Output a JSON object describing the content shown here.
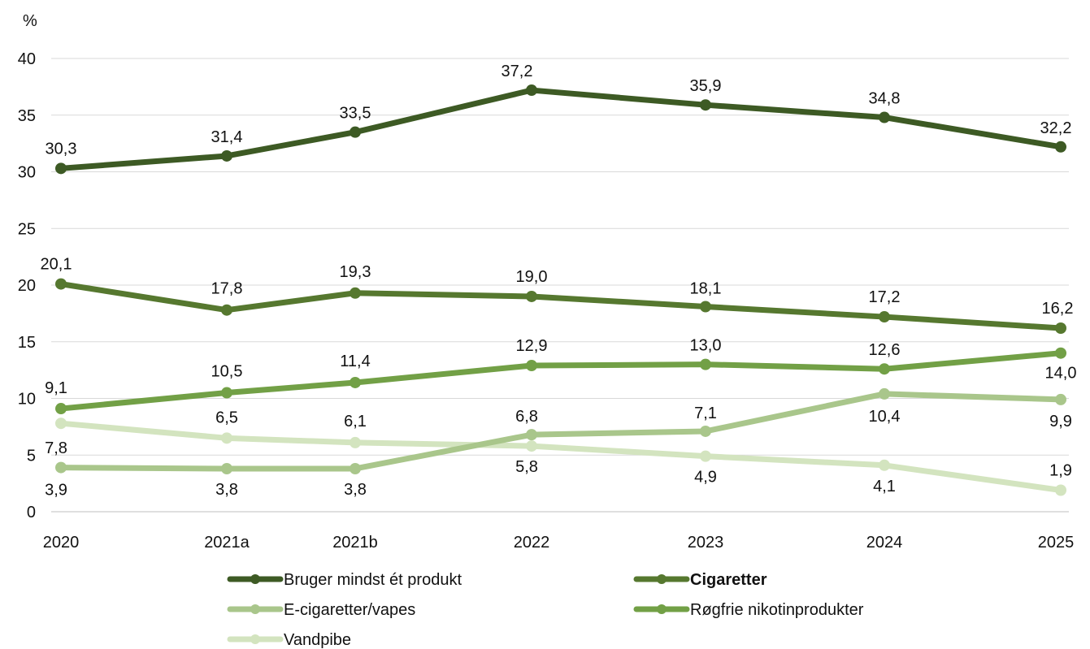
{
  "chart_data": {
    "type": "line",
    "title": "",
    "ylabel": "%",
    "xlabel": "",
    "ylim": [
      0,
      40
    ],
    "yticks": [
      0,
      5,
      10,
      15,
      20,
      25,
      30,
      35,
      40
    ],
    "ytick_labels": [
      "0",
      "5",
      "10",
      "15",
      "20",
      "25",
      "30",
      "35",
      "40"
    ],
    "grid": "horizontal",
    "legend_position": "bottom",
    "categories": [
      "2020",
      "2021a",
      "2021b",
      "2022",
      "2023",
      "2024",
      "2025"
    ],
    "series": [
      {
        "name": "Bruger mindst ét produkt",
        "color": "#3d5a24",
        "values": [
          30.3,
          31.4,
          33.5,
          37.2,
          35.9,
          34.8,
          32.2
        ],
        "labels": [
          "30,3",
          "31,4",
          "33,5",
          "37,2",
          "35,9",
          "34,8",
          "32,2"
        ]
      },
      {
        "name": "Cigaretter",
        "color": "#56782f",
        "values": [
          20.1,
          17.8,
          19.3,
          19.0,
          18.1,
          17.2,
          16.2
        ],
        "labels": [
          "20,1",
          "17,8",
          "19,3",
          "19,0",
          "18,1",
          "17,2",
          "16,2"
        ]
      },
      {
        "name": "E-cigaretter/vapes",
        "color": "#a9c68b",
        "values": [
          3.9,
          3.8,
          3.8,
          6.8,
          7.1,
          10.4,
          9.9
        ],
        "labels": [
          "3,9",
          "3,8",
          "3,8",
          "6,8",
          "7,1",
          "10,4",
          "9,9"
        ]
      },
      {
        "name": "Røgfrie nikotinprodukter",
        "color": "#72a046",
        "values": [
          9.1,
          10.5,
          11.4,
          12.9,
          13.0,
          12.6,
          14.0
        ],
        "labels": [
          "9,1",
          "10,5",
          "11,4",
          "12,9",
          "13,0",
          "12,6",
          "14,0"
        ]
      },
      {
        "name": "Vandpibe",
        "color": "#d3e4bf",
        "values": [
          7.8,
          6.5,
          6.1,
          5.8,
          4.9,
          4.1,
          1.9
        ],
        "labels": [
          "7,8",
          "6,5",
          "6,1",
          "5,8",
          "4,9",
          "4,1",
          "1,9"
        ]
      }
    ]
  }
}
